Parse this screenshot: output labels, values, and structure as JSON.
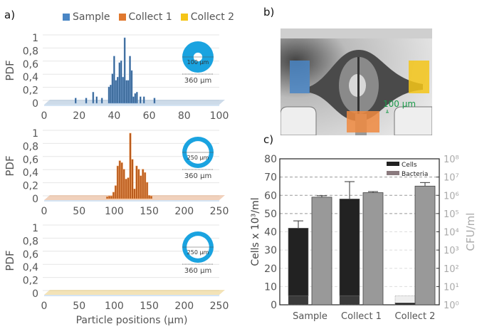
{
  "panels": {
    "a": "a)",
    "b": "b)",
    "c": "c)"
  },
  "legend": [
    {
      "label": "Sample",
      "color": "#4a86c5"
    },
    {
      "label": "Collect 1",
      "color": "#e0782e"
    },
    {
      "label": "Collect 2",
      "color": "#f5c518"
    }
  ],
  "scale_bar": "100 µm",
  "chart_data": [
    {
      "type": "bar",
      "series_name": "Sample",
      "color": "#2f5f8f",
      "ylabel": "PDF",
      "yticks": [
        "0",
        "0,2",
        "0,4",
        "0,6",
        "0,8",
        "1"
      ],
      "xticks": [
        "0",
        "20",
        "40",
        "60",
        "80",
        "100"
      ],
      "xlim": [
        0,
        100
      ],
      "ylim": [
        0,
        1
      ],
      "inset": {
        "inner": "100 µm",
        "outer": "360 µm",
        "inner_ratio": 0.28
      },
      "x": [
        18,
        24,
        28,
        30,
        33,
        37,
        38,
        39,
        40,
        41,
        42,
        43,
        44,
        45,
        46,
        47,
        48,
        49,
        50,
        51,
        52,
        53,
        55,
        57,
        63
      ],
      "values": [
        0.08,
        0.08,
        0.17,
        0.1,
        0.08,
        0.25,
        0.28,
        0.45,
        0.72,
        0.35,
        0.4,
        0.62,
        0.65,
        0.4,
        1.0,
        0.35,
        0.35,
        0.72,
        0.5,
        0.1,
        0.15,
        0.17,
        0.1,
        0.1,
        0.08
      ]
    },
    {
      "type": "bar",
      "series_name": "Collect 1",
      "color": "#b85a1c",
      "ylabel": "PDF",
      "yticks": [
        "0",
        "0,2",
        "0,4",
        "0,6",
        "0,8",
        "1"
      ],
      "xticks": [
        "0",
        "50",
        "100",
        "150",
        "200",
        "250"
      ],
      "xlim": [
        0,
        250
      ],
      "ylim": [
        0,
        1
      ],
      "inset": {
        "inner": "250 µm",
        "outer": "360 µm",
        "inner_ratio": 0.72
      },
      "x": [
        90,
        93,
        96,
        99,
        102,
        105,
        108,
        111,
        114,
        117,
        120,
        123,
        126,
        129,
        132,
        135,
        138,
        141,
        144,
        147,
        150,
        153
      ],
      "values": [
        0.03,
        0.04,
        0.04,
        0.1,
        0.2,
        0.5,
        0.58,
        0.55,
        0.45,
        0.3,
        0.32,
        1.0,
        0.6,
        0.15,
        0.5,
        0.45,
        0.35,
        0.45,
        0.4,
        0.25,
        0.05,
        0.04
      ]
    },
    {
      "type": "bar",
      "series_name": "Collect 2",
      "color": "#e0b000",
      "ylabel": "PDF",
      "xlabel": "Particle positions (µm)",
      "yticks": [
        "0",
        "0,2",
        "0,4",
        "0,6",
        "0,8",
        "1"
      ],
      "xticks": [
        "0",
        "50",
        "100",
        "150",
        "200",
        "250"
      ],
      "xlim": [
        0,
        250
      ],
      "ylim": [
        0,
        1
      ],
      "inset": {
        "inner": "250 µm",
        "outer": "360 µm",
        "inner_ratio": 0.72
      },
      "x": [],
      "values": []
    },
    {
      "type": "bar",
      "categories": [
        "Sample",
        "Collect 1",
        "Collect 2"
      ],
      "ylabel": "Cells x 10³/ml",
      "y2label": "CFU/ml",
      "ylim": [
        0,
        80
      ],
      "y2lim": [
        1,
        100000000
      ],
      "y2scale": "log",
      "yticks": [
        "0",
        "10",
        "20",
        "30",
        "40",
        "50",
        "60",
        "70",
        "80"
      ],
      "y2ticks": [
        "10⁰",
        "10¹",
        "10²",
        "10³",
        "10⁴",
        "10⁵",
        "10⁶",
        "10⁷",
        "10⁸"
      ],
      "grid": "dashed horizontal",
      "legend_position": "top-right",
      "series": [
        {
          "name": "Cells",
          "color": "#222222",
          "axis": "left",
          "values": [
            42,
            58,
            1
          ],
          "error_upper": [
            46,
            67.5,
            4
          ],
          "hatched_base": 5
        },
        {
          "name": "Bacteria",
          "color": "#999999",
          "legend_color": "#8a7a7e",
          "axis": "right",
          "values": [
            790000,
            1400000,
            3200000
          ],
          "error_upper": [
            950000,
            1600000,
            5000000
          ]
        }
      ]
    }
  ]
}
